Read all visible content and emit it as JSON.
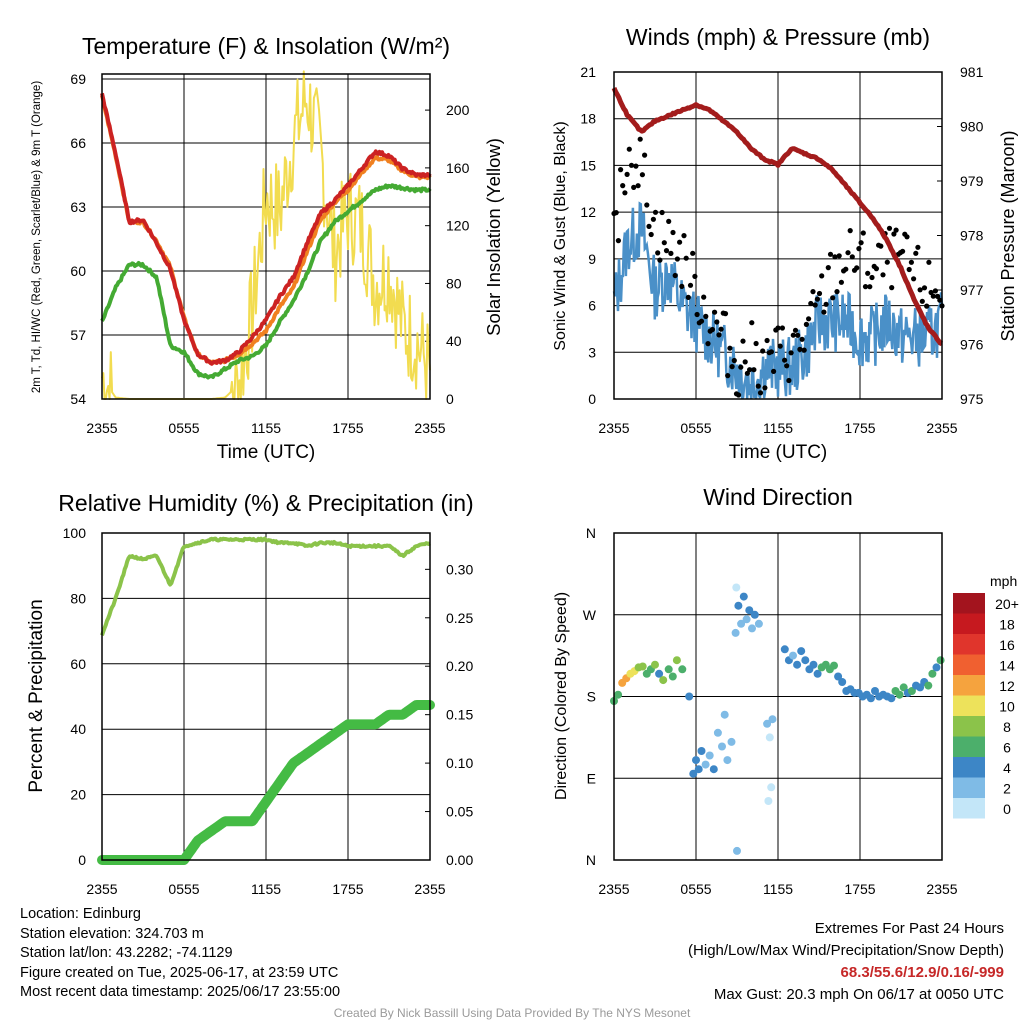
{
  "panels": {
    "temp": {
      "title": "Temperature (F) & Insolation (W/m²)",
      "xlabel": "Time (UTC)",
      "ylabel_left": "2m T, Td, HI/WC (Red, Green, Scarlet/Blue) & 9m T (Orange)",
      "ylabel_right": "Solar Insolation (Yellow)"
    },
    "wind": {
      "title": "Winds (mph) & Pressure (mb)",
      "xlabel": "Time (UTC)",
      "ylabel_left": "Sonic Wind & Gust (Blue, Black)",
      "ylabel_right": "Station Pressure (Maroon)"
    },
    "rh": {
      "title": "Relative Humidity (%) & Precipitation (in)",
      "ylabel_left": "Percent & Precipitation"
    },
    "dir": {
      "title": "Wind Direction",
      "ylabel_left": "Direction (Colored By Speed)"
    }
  },
  "x_ticks": [
    "2355",
    "0555",
    "1155",
    "1755",
    "2355"
  ],
  "legend": {
    "title": "mph",
    "labels": [
      "20+",
      "18",
      "16",
      "14",
      "12",
      "10",
      "8",
      "6",
      "4",
      "2",
      "0"
    ],
    "colors": [
      "#a3141e",
      "#c6191f",
      "#e0352c",
      "#f06030",
      "#f5a33e",
      "#ede25b",
      "#8bc34a",
      "#4caf6b",
      "#3d86c6",
      "#7fbbe6",
      "#c3e6f8"
    ]
  },
  "info_left": {
    "location": "Location: Edinburg",
    "elevation": "Station elevation: 324.703 m",
    "latlon": "Station lat/lon: 43.2282; -74.1129",
    "created": "Figure created on Tue, 2025-06-17, at 23:59 UTC",
    "recent": "Most recent data timestamp: 2025/06/17 23:55:00"
  },
  "info_right": {
    "title": "Extremes For Past 24 Hours",
    "subtitle": "(High/Low/Max Wind/Precipitation/Snow Depth)",
    "values": "68.3/55.6/12.9/0.16/-999",
    "gust": "Max Gust: 20.3 mph On 06/17 at 0050 UTC"
  },
  "credit": "Created By Nick Bassill Using Data Provided By The NYS Mesonet",
  "chart_data": [
    {
      "type": "line",
      "title": "Temperature (F) & Insolation (W/m²)",
      "xlabel": "Time (UTC)",
      "x_range_hours": [
        0,
        24
      ],
      "x": [
        0,
        1,
        2,
        3,
        4,
        5,
        6,
        7,
        8,
        9,
        10,
        11,
        12,
        13,
        14,
        15,
        16,
        17,
        18,
        19,
        20,
        21,
        22,
        23,
        24
      ],
      "ylim_left": [
        54,
        69
      ],
      "yticks_left": [
        54,
        57,
        60,
        63,
        66,
        69
      ],
      "ylim_right": [
        0,
        225
      ],
      "yticks_right": [
        0,
        40,
        80,
        120,
        160,
        200
      ],
      "series": [
        {
          "name": "2m T",
          "color": "#cc2222",
          "axis": "left",
          "values": [
            68.3,
            65.5,
            62.3,
            62.4,
            61.3,
            60.1,
            57.7,
            56.1,
            55.7,
            55.8,
            56.2,
            56.9,
            57.7,
            58.8,
            59.7,
            61.3,
            62.7,
            63.3,
            64.0,
            64.8,
            65.6,
            65.4,
            64.8,
            64.5,
            64.5
          ]
        },
        {
          "name": "9m T",
          "color": "#f08020",
          "axis": "left",
          "values": [
            68.2,
            65.4,
            62.3,
            62.3,
            61.4,
            60.2,
            57.8,
            56.1,
            55.7,
            55.8,
            56.1,
            56.6,
            57.2,
            58.3,
            59.2,
            60.9,
            62.4,
            63.2,
            63.8,
            64.6,
            65.3,
            65.2,
            64.7,
            64.4,
            64.4
          ]
        },
        {
          "name": "Td",
          "color": "#44aa33",
          "axis": "left",
          "values": [
            57.6,
            59.2,
            60.3,
            60.3,
            59.7,
            56.5,
            56.2,
            55.2,
            55.0,
            55.4,
            55.8,
            56.0,
            56.5,
            57.6,
            58.6,
            59.9,
            61.4,
            62.3,
            62.8,
            63.3,
            63.8,
            64.0,
            63.9,
            63.8,
            63.8
          ]
        },
        {
          "name": "Insolation",
          "color": "#f2dc50",
          "axis": "right",
          "values": [
            15,
            1,
            0,
            0,
            0,
            0,
            0,
            0,
            0,
            1,
            10,
            60,
            140,
            130,
            180,
            210,
            170,
            100,
            130,
            120,
            80,
            90,
            50,
            40,
            20
          ]
        }
      ]
    },
    {
      "type": "line",
      "title": "Winds (mph) & Pressure (mb)",
      "xlabel": "Time (UTC)",
      "x_range_hours": [
        0,
        24
      ],
      "x": [
        0,
        1,
        2,
        3,
        4,
        5,
        6,
        7,
        8,
        9,
        10,
        11,
        12,
        13,
        14,
        15,
        16,
        17,
        18,
        19,
        20,
        21,
        22,
        23,
        24
      ],
      "ylim_left": [
        0,
        21
      ],
      "yticks_left": [
        0,
        3,
        6,
        9,
        12,
        15,
        18,
        21
      ],
      "ylim_right": [
        975,
        981
      ],
      "yticks_right": [
        975,
        976,
        977,
        978,
        979,
        980,
        981
      ],
      "series": [
        {
          "name": "Pressure",
          "color": "#a31c1c",
          "axis": "right",
          "values": [
            980.7,
            980.2,
            979.9,
            980.1,
            980.2,
            980.3,
            980.4,
            980.3,
            980.1,
            979.9,
            979.6,
            979.4,
            979.3,
            979.6,
            979.5,
            979.4,
            979.2,
            978.9,
            978.6,
            978.3,
            977.9,
            977.4,
            976.8,
            976.3,
            976.0
          ]
        },
        {
          "name": "Sonic Wind",
          "color": "#4a90c8",
          "axis": "left",
          "values": [
            6,
            10,
            11,
            7,
            8,
            6,
            5,
            4,
            3,
            2,
            1,
            2,
            2,
            2,
            3,
            5,
            5,
            5,
            4,
            4,
            5,
            4,
            4,
            4,
            5
          ]
        },
        {
          "name": "Gust",
          "color": "#000000",
          "axis": "left",
          "values": [
            10,
            16,
            15,
            11,
            10,
            9,
            7,
            5,
            4,
            2,
            3,
            2,
            3,
            3,
            4,
            6,
            8,
            9,
            9,
            8,
            9,
            9,
            8,
            7,
            7
          ]
        }
      ]
    },
    {
      "type": "line",
      "title": "Relative Humidity (%) & Precipitation (in)",
      "x_range_hours": [
        0,
        24
      ],
      "x": [
        0,
        1,
        2,
        3,
        4,
        5,
        6,
        7,
        8,
        9,
        10,
        11,
        12,
        13,
        14,
        15,
        16,
        17,
        18,
        19,
        20,
        21,
        22,
        23,
        24
      ],
      "ylim_left": [
        0,
        100
      ],
      "yticks_left": [
        0,
        20,
        40,
        60,
        80,
        100
      ],
      "ylim_right": [
        0,
        0.3375
      ],
      "yticks_right": [
        0.0,
        0.05,
        0.1,
        0.15,
        0.2,
        0.25,
        0.3
      ],
      "series": [
        {
          "name": "RH",
          "color": "#8bc34a",
          "axis": "left",
          "values": [
            69,
            80,
            93,
            92,
            93,
            84,
            96,
            97,
            98,
            98,
            98,
            98,
            98,
            97,
            97,
            96,
            97,
            97,
            96,
            96,
            96,
            96,
            93,
            96,
            97
          ]
        },
        {
          "name": "Precipitation",
          "color": "#44bb44",
          "axis": "right",
          "values": [
            0,
            0,
            0,
            0,
            0,
            0,
            0,
            0.02,
            0.03,
            0.04,
            0.04,
            0.04,
            0.06,
            0.08,
            0.1,
            0.11,
            0.12,
            0.13,
            0.14,
            0.14,
            0.14,
            0.15,
            0.15,
            0.16,
            0.16
          ]
        }
      ]
    },
    {
      "type": "scatter",
      "title": "Wind Direction",
      "x_range_hours": [
        0,
        24
      ],
      "y_ticks": [
        "N",
        "E",
        "S",
        "W",
        "N"
      ],
      "ylim_degrees": [
        0,
        360
      ],
      "colorbar_units": "mph",
      "points": [
        {
          "x": 0.0,
          "dir": 175,
          "speed": 5
        },
        {
          "x": 0.3,
          "dir": 182,
          "speed": 6
        },
        {
          "x": 0.6,
          "dir": 195,
          "speed": 11
        },
        {
          "x": 0.9,
          "dir": 200,
          "speed": 12
        },
        {
          "x": 1.2,
          "dir": 205,
          "speed": 10
        },
        {
          "x": 1.5,
          "dir": 208,
          "speed": 9
        },
        {
          "x": 1.8,
          "dir": 212,
          "speed": 7
        },
        {
          "x": 2.1,
          "dir": 213,
          "speed": 8
        },
        {
          "x": 2.4,
          "dir": 205,
          "speed": 5
        },
        {
          "x": 2.7,
          "dir": 210,
          "speed": 6
        },
        {
          "x": 3.0,
          "dir": 215,
          "speed": 8
        },
        {
          "x": 3.3,
          "dir": 205,
          "speed": 4
        },
        {
          "x": 3.6,
          "dir": 198,
          "speed": 7
        },
        {
          "x": 4.0,
          "dir": 210,
          "speed": 6
        },
        {
          "x": 4.3,
          "dir": 202,
          "speed": 5
        },
        {
          "x": 4.6,
          "dir": 220,
          "speed": 8
        },
        {
          "x": 5.0,
          "dir": 210,
          "speed": 6
        },
        {
          "x": 5.5,
          "dir": 180,
          "speed": 4
        },
        {
          "x": 5.8,
          "dir": 95,
          "speed": 3
        },
        {
          "x": 6.0,
          "dir": 110,
          "speed": 4
        },
        {
          "x": 6.2,
          "dir": 100,
          "speed": 4
        },
        {
          "x": 6.4,
          "dir": 120,
          "speed": 3
        },
        {
          "x": 6.7,
          "dir": 105,
          "speed": 2
        },
        {
          "x": 7.0,
          "dir": 115,
          "speed": 2
        },
        {
          "x": 7.3,
          "dir": 100,
          "speed": 3
        },
        {
          "x": 7.6,
          "dir": 140,
          "speed": 2
        },
        {
          "x": 7.9,
          "dir": 125,
          "speed": 1
        },
        {
          "x": 8.1,
          "dir": 160,
          "speed": 2
        },
        {
          "x": 8.3,
          "dir": 110,
          "speed": 1
        },
        {
          "x": 8.6,
          "dir": 130,
          "speed": 2
        },
        {
          "x": 8.9,
          "dir": 250,
          "speed": 1
        },
        {
          "x": 9.1,
          "dir": 280,
          "speed": 3
        },
        {
          "x": 9.3,
          "dir": 260,
          "speed": 2
        },
        {
          "x": 9.5,
          "dir": 290,
          "speed": 3
        },
        {
          "x": 9.7,
          "dir": 265,
          "speed": 2
        },
        {
          "x": 9.9,
          "dir": 275,
          "speed": 3
        },
        {
          "x": 10.1,
          "dir": 255,
          "speed": 2
        },
        {
          "x": 10.3,
          "dir": 270,
          "speed": 3
        },
        {
          "x": 10.6,
          "dir": 260,
          "speed": 2
        },
        {
          "x": 9.0,
          "dir": 10,
          "speed": 1
        },
        {
          "x": 8.95,
          "dir": 300,
          "speed": 0
        },
        {
          "x": 11.2,
          "dir": 150,
          "speed": 1
        },
        {
          "x": 11.4,
          "dir": 135,
          "speed": 0
        },
        {
          "x": 11.6,
          "dir": 155,
          "speed": 1
        },
        {
          "x": 11.3,
          "dir": 65,
          "speed": 0
        },
        {
          "x": 11.5,
          "dir": 80,
          "speed": 0
        },
        {
          "x": 12.5,
          "dir": 232,
          "speed": 3
        },
        {
          "x": 12.8,
          "dir": 220,
          "speed": 3
        },
        {
          "x": 13.1,
          "dir": 225,
          "speed": 2
        },
        {
          "x": 13.4,
          "dir": 215,
          "speed": 3
        },
        {
          "x": 13.7,
          "dir": 230,
          "speed": 4
        },
        {
          "x": 14.0,
          "dir": 220,
          "speed": 4
        },
        {
          "x": 14.3,
          "dir": 210,
          "speed": 4
        },
        {
          "x": 14.6,
          "dir": 215,
          "speed": 4
        },
        {
          "x": 14.9,
          "dir": 205,
          "speed": 4
        },
        {
          "x": 15.2,
          "dir": 212,
          "speed": 5
        },
        {
          "x": 15.5,
          "dir": 215,
          "speed": 6
        },
        {
          "x": 15.8,
          "dir": 210,
          "speed": 6
        },
        {
          "x": 16.1,
          "dir": 214,
          "speed": 6
        },
        {
          "x": 16.4,
          "dir": 202,
          "speed": 4
        },
        {
          "x": 16.7,
          "dir": 196,
          "speed": 3
        },
        {
          "x": 17.0,
          "dir": 186,
          "speed": 3
        },
        {
          "x": 17.3,
          "dir": 188,
          "speed": 3
        },
        {
          "x": 17.6,
          "dir": 184,
          "speed": 4
        },
        {
          "x": 17.9,
          "dir": 184,
          "speed": 4
        },
        {
          "x": 18.2,
          "dir": 180,
          "speed": 4
        },
        {
          "x": 18.5,
          "dir": 182,
          "speed": 4
        },
        {
          "x": 18.8,
          "dir": 178,
          "speed": 4
        },
        {
          "x": 19.1,
          "dir": 186,
          "speed": 3
        },
        {
          "x": 19.4,
          "dir": 180,
          "speed": 4
        },
        {
          "x": 19.7,
          "dir": 182,
          "speed": 4
        },
        {
          "x": 20.0,
          "dir": 180,
          "speed": 4
        },
        {
          "x": 20.3,
          "dir": 178,
          "speed": 4
        },
        {
          "x": 20.6,
          "dir": 186,
          "speed": 5
        },
        {
          "x": 20.9,
          "dir": 182,
          "speed": 6
        },
        {
          "x": 21.2,
          "dir": 190,
          "speed": 5
        },
        {
          "x": 21.5,
          "dir": 184,
          "speed": 4
        },
        {
          "x": 21.8,
          "dir": 186,
          "speed": 5
        },
        {
          "x": 22.1,
          "dir": 192,
          "speed": 4
        },
        {
          "x": 22.4,
          "dir": 190,
          "speed": 4
        },
        {
          "x": 22.7,
          "dir": 196,
          "speed": 4
        },
        {
          "x": 23.0,
          "dir": 192,
          "speed": 5
        },
        {
          "x": 23.3,
          "dir": 205,
          "speed": 5
        },
        {
          "x": 23.6,
          "dir": 212,
          "speed": 4
        },
        {
          "x": 23.9,
          "dir": 220,
          "speed": 6
        }
      ]
    }
  ]
}
